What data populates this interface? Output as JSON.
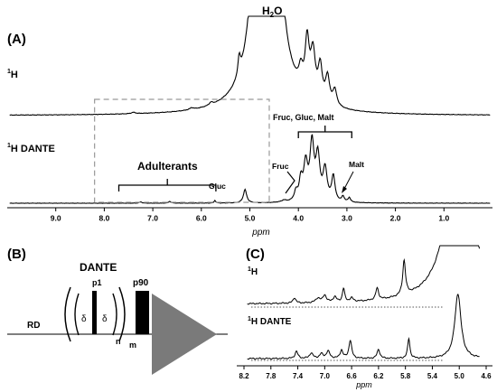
{
  "chart_data": [
    {
      "id": "A",
      "type": "line",
      "panel_label": "(A)",
      "xlabel": "ppm",
      "xlim": [
        10,
        0
      ],
      "x_reversed": true,
      "ticks": [
        "9.0",
        "8.0",
        "7.0",
        "6.0",
        "5.0",
        "4.0",
        "3.0",
        "2.0",
        "1.0"
      ],
      "traces": [
        {
          "label": "1H",
          "label_base": "H",
          "label_sup": "1"
        },
        {
          "label": "1H DANTE",
          "label_base": "H DANTE",
          "label_sup": "1"
        }
      ],
      "annotations": {
        "water": "H2O",
        "water_base": "H",
        "water_sub": "2",
        "water_tail": "O",
        "adulterants": "Adulterants",
        "sugars": "Fruc, Gluc, Malt",
        "fruc": "Fruc",
        "gluc": "Gluc",
        "malt": "Malt"
      },
      "highlight_box_ppm": [
        8.2,
        4.6
      ],
      "sugar_bracket_ppm": [
        4.0,
        2.9
      ],
      "adulterant_bracket_ppm": [
        7.7,
        5.7
      ]
    },
    {
      "id": "C",
      "type": "line",
      "panel_label": "(C)",
      "xlabel": "ppm",
      "xlim": [
        8.2,
        4.6
      ],
      "x_reversed": true,
      "ticks": [
        "8.2",
        "7.8",
        "7.4",
        "7.0",
        "6.6",
        "6.2",
        "5.8",
        "5.4",
        "5.0",
        "4.6"
      ],
      "traces": [
        {
          "label": "1H",
          "label_base": "H",
          "label_sup": "1"
        },
        {
          "label": "1H DANTE",
          "label_base": "H DANTE",
          "label_sup": "1"
        }
      ]
    }
  ],
  "diagram": {
    "panel_label": "(B)",
    "dante": "DANTE",
    "rd": "RD",
    "p1": "p1",
    "delta": "δ",
    "n": "n",
    "m": "m",
    "p90": "p90"
  }
}
